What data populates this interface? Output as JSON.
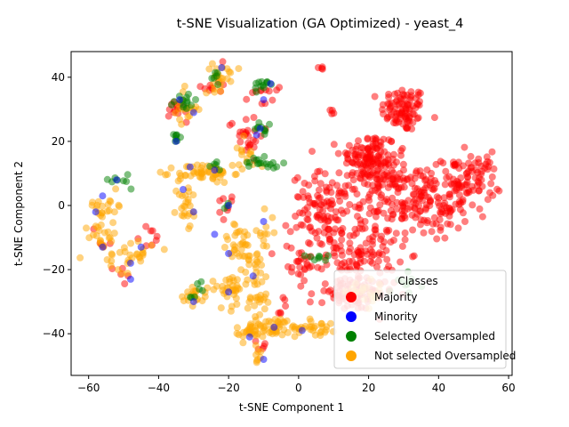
{
  "chart_data": {
    "type": "scatter",
    "title": "t-SNE Visualization (GA Optimized) - yeast_4",
    "xlabel": "t-SNE Component 1",
    "ylabel": "t-SNE Component 2",
    "xlim": [
      -65,
      61
    ],
    "ylim": [
      -53,
      48
    ],
    "xticks": [
      -60,
      -40,
      -20,
      0,
      20,
      40,
      60
    ],
    "yticks": [
      -40,
      -20,
      0,
      20,
      40
    ],
    "grid": false,
    "legend": {
      "title": "Classes",
      "placement": "lower-right",
      "entries": [
        "Majority",
        "Minority",
        "Selected Oversampled",
        "Not selected Oversampled"
      ]
    },
    "series": [
      {
        "name": "Majority",
        "color": "#ff0000",
        "clusters": [
          {
            "cx": 30,
            "cy": 30,
            "sx": 3.2,
            "sy": 3.5,
            "n": 90
          },
          {
            "cx": 20,
            "cy": 15,
            "sx": 4,
            "sy": 4,
            "n": 110
          },
          {
            "cx": 35,
            "cy": 0,
            "sx": 7,
            "sy": 5.5,
            "n": 150
          },
          {
            "cx": 48,
            "cy": 8,
            "sx": 5,
            "sy": 4,
            "n": 90
          },
          {
            "cx": 8,
            "cy": -2,
            "sx": 5,
            "sy": 6,
            "n": 120
          },
          {
            "cx": 18,
            "cy": -15,
            "sx": 5,
            "sy": 5,
            "n": 100
          },
          {
            "cx": 15,
            "cy": -28,
            "sx": 6,
            "sy": 2.5,
            "n": 80
          },
          {
            "cx": 25,
            "cy": 8,
            "sx": 5,
            "sy": 4,
            "n": 80
          },
          {
            "cx": 0,
            "cy": -18,
            "sx": 3,
            "sy": 3,
            "n": 25
          },
          {
            "cx": -15,
            "cy": 22,
            "sx": 2.5,
            "sy": 3,
            "n": 25
          },
          {
            "cx": -34,
            "cy": 30,
            "sx": 1.5,
            "sy": 2,
            "n": 14
          },
          {
            "cx": -25,
            "cy": 38,
            "sx": 2,
            "sy": 2,
            "n": 10
          },
          {
            "cx": -10,
            "cy": 36,
            "sx": 2,
            "sy": 3,
            "n": 12
          },
          {
            "cx": -20,
            "cy": 0,
            "sx": 2,
            "sy": 2,
            "n": 8
          },
          {
            "cx": -42,
            "cy": -10,
            "sx": 2,
            "sy": 2,
            "n": 8
          },
          {
            "cx": -10,
            "cy": -45,
            "sx": 1,
            "sy": 2,
            "n": 5
          },
          {
            "cx": 6.5,
            "cy": 43,
            "sx": 0.5,
            "sy": 0.3,
            "n": 4
          },
          {
            "cx": 9,
            "cy": 29,
            "sx": 0.8,
            "sy": 0.5,
            "n": 4
          },
          {
            "cx": -50,
            "cy": -21,
            "sx": 2,
            "sy": 2,
            "n": 5
          },
          {
            "cx": -56,
            "cy": -10,
            "sx": 2,
            "sy": 3,
            "n": 5
          },
          {
            "cx": -5,
            "cy": -30,
            "sx": 3,
            "sy": 3,
            "n": 6
          }
        ]
      },
      {
        "name": "Not selected Oversampled",
        "color": "#ffa500",
        "clusters": [
          {
            "cx": -27,
            "cy": 10,
            "sx": 4,
            "sy": 1.5,
            "n": 55
          },
          {
            "cx": -32,
            "cy": 0,
            "sx": 1.5,
            "sy": 4,
            "n": 25
          },
          {
            "cx": -17,
            "cy": -12,
            "sx": 2.5,
            "sy": 3,
            "n": 30
          },
          {
            "cx": -12,
            "cy": -25,
            "sx": 2,
            "sy": 6,
            "n": 45
          },
          {
            "cx": -8,
            "cy": -38,
            "sx": 4,
            "sy": 1.5,
            "n": 45
          },
          {
            "cx": 5,
            "cy": -38,
            "sx": 3,
            "sy": 1.2,
            "n": 30
          },
          {
            "cx": -20,
            "cy": -26,
            "sx": 2.5,
            "sy": 3,
            "n": 30
          },
          {
            "cx": -30,
            "cy": -28,
            "sx": 2,
            "sy": 1.5,
            "n": 20
          },
          {
            "cx": -48,
            "cy": -15,
            "sx": 3,
            "sy": 3,
            "n": 30
          },
          {
            "cx": -56,
            "cy": -10,
            "sx": 2,
            "sy": 3,
            "n": 20
          },
          {
            "cx": -55,
            "cy": 0,
            "sx": 2.5,
            "sy": 2,
            "n": 20
          },
          {
            "cx": -22,
            "cy": 40,
            "sx": 2.5,
            "sy": 2,
            "n": 25
          },
          {
            "cx": -33,
            "cy": 30,
            "sx": 2,
            "sy": 3,
            "n": 18
          },
          {
            "cx": -15,
            "cy": 16,
            "sx": 2,
            "sy": 3,
            "n": 15
          },
          {
            "cx": -10,
            "cy": -8,
            "sx": 1.5,
            "sy": 3,
            "n": 12
          },
          {
            "cx": 20,
            "cy": -28,
            "sx": 3,
            "sy": 2,
            "n": 20
          },
          {
            "cx": -12,
            "cy": -45,
            "sx": 1,
            "sy": 2,
            "n": 8
          },
          {
            "cx": -15,
            "cy": -40,
            "sx": 2,
            "sy": 1.2,
            "n": 15
          }
        ]
      },
      {
        "name": "Selected Oversampled",
        "color": "#008000",
        "clusters": [
          {
            "cx": -33,
            "cy": 32,
            "sx": 2,
            "sy": 1.5,
            "n": 14
          },
          {
            "cx": -10,
            "cy": 38,
            "sx": 1.5,
            "sy": 1.5,
            "n": 12
          },
          {
            "cx": -10,
            "cy": 24,
            "sx": 1.2,
            "sy": 1.2,
            "n": 10
          },
          {
            "cx": -13,
            "cy": 14,
            "sx": 2,
            "sy": 1,
            "n": 10
          },
          {
            "cx": -8,
            "cy": 13,
            "sx": 1.5,
            "sy": 1,
            "n": 8
          },
          {
            "cx": -51,
            "cy": 8,
            "sx": 1.5,
            "sy": 1,
            "n": 8
          },
          {
            "cx": -35,
            "cy": 21,
            "sx": 1,
            "sy": 1.5,
            "n": 8
          },
          {
            "cx": -24,
            "cy": 40,
            "sx": 1,
            "sy": 1,
            "n": 6
          },
          {
            "cx": -24,
            "cy": 12,
            "sx": 1,
            "sy": 0.6,
            "n": 5
          },
          {
            "cx": 5,
            "cy": -16,
            "sx": 1.5,
            "sy": 1,
            "n": 8
          },
          {
            "cx": 32,
            "cy": -24,
            "sx": 2,
            "sy": 1.5,
            "n": 10
          },
          {
            "cx": -28,
            "cy": -25,
            "sx": 1,
            "sy": 1,
            "n": 4
          },
          {
            "cx": -30,
            "cy": -28,
            "sx": 0.6,
            "sy": 0.6,
            "n": 3
          },
          {
            "cx": -20,
            "cy": 0,
            "sx": 0.6,
            "sy": 0.6,
            "n": 3
          }
        ]
      },
      {
        "name": "Minority",
        "color": "#0000ff",
        "points": [
          [
            -22,
            43
          ],
          [
            -8,
            38
          ],
          [
            -10,
            33
          ],
          [
            -34,
            33
          ],
          [
            -30,
            29
          ],
          [
            -11,
            24
          ],
          [
            -35,
            20
          ],
          [
            -12,
            22
          ],
          [
            -52,
            8
          ],
          [
            -33,
            5
          ],
          [
            -30,
            -2
          ],
          [
            -58,
            -2
          ],
          [
            -56,
            3
          ],
          [
            -24,
            -9
          ],
          [
            -20,
            -15
          ],
          [
            -10,
            -5
          ],
          [
            -48,
            -18
          ],
          [
            -45,
            -13
          ],
          [
            -56,
            -13
          ],
          [
            -48,
            -23
          ],
          [
            -20,
            -27
          ],
          [
            -13,
            -22
          ],
          [
            -30,
            -30
          ],
          [
            -14,
            -41
          ],
          [
            -7,
            -38
          ],
          [
            -10,
            -48
          ],
          [
            1,
            -39
          ],
          [
            -20,
            0
          ],
          [
            -24,
            11
          ],
          [
            -31,
            12
          ]
        ]
      }
    ]
  }
}
